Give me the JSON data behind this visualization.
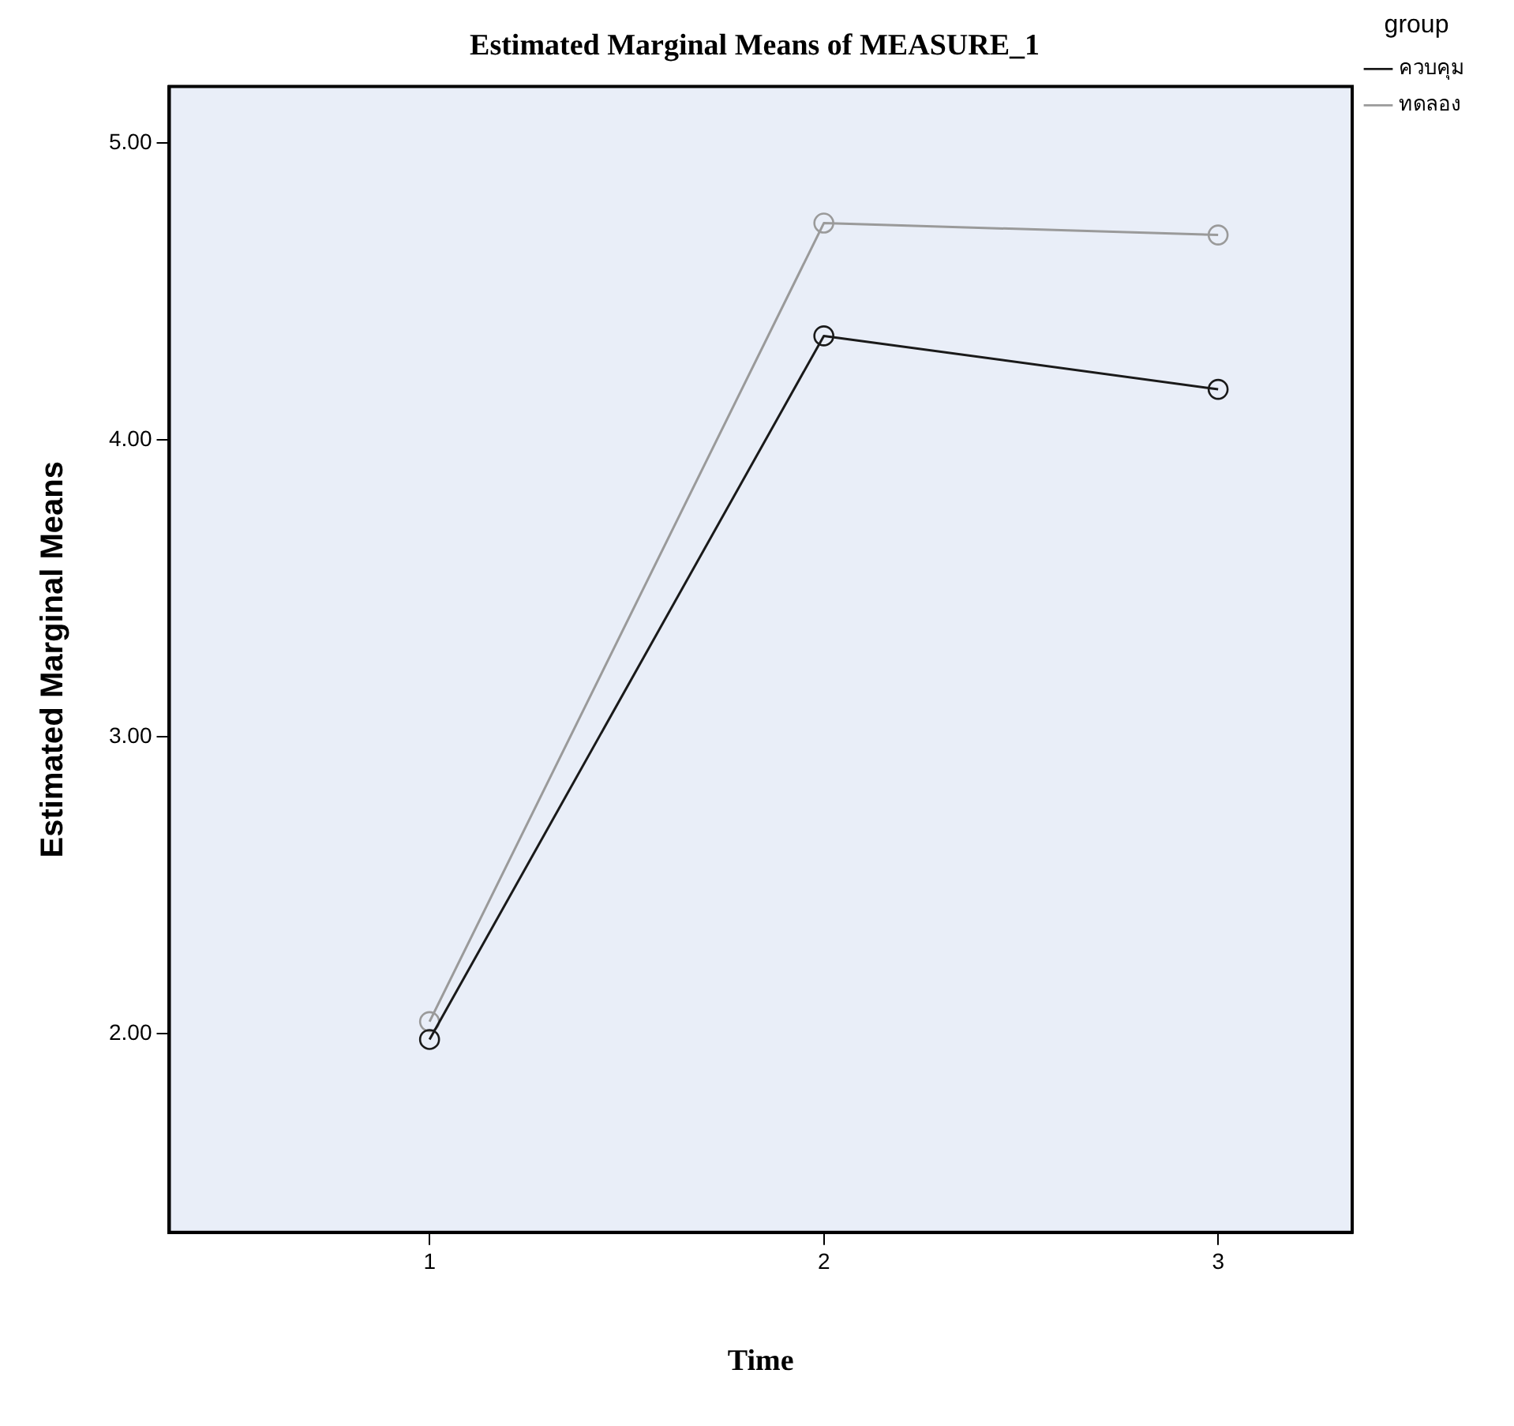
{
  "chart_data": {
    "type": "line",
    "title": "Estimated Marginal Means of MEASURE_1",
    "xlabel": "Time",
    "ylabel": "Estimated Marginal Means",
    "legend_title": "group",
    "x": [
      1,
      2,
      3
    ],
    "series": [
      {
        "name": "ควบคุม",
        "color": "#1a1a1a",
        "values": [
          1.98,
          4.35,
          4.17
        ]
      },
      {
        "name": "ทดลอง",
        "color": "#9a9a9a",
        "values": [
          2.04,
          4.73,
          4.69
        ]
      }
    ],
    "xlim": [
      0.34,
      3.34
    ],
    "xticks": [
      1,
      2,
      3
    ],
    "ylim": [
      1.33,
      5.19
    ],
    "yticks": [
      {
        "value": 2,
        "label": "2.00"
      },
      {
        "value": 3,
        "label": "3.00"
      },
      {
        "value": 4,
        "label": "4.00"
      },
      {
        "value": 5,
        "label": "5.00"
      }
    ],
    "grid": false,
    "legend": "top right",
    "marker": "circle",
    "line_style": "solid"
  }
}
